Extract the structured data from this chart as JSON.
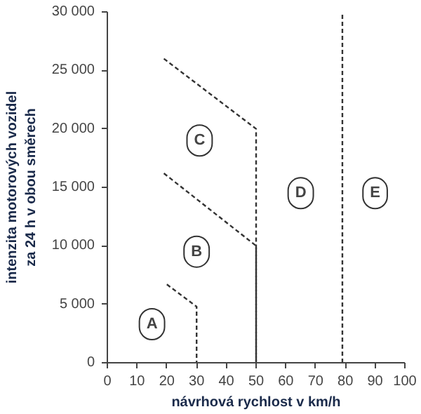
{
  "chart_data": {
    "type": "line",
    "xlabel": "návrhová rychlost v km/h",
    "ylabel": "intenzita motorových vozidel\nza 24 h v obou směrech",
    "line_style": "dashed",
    "marker": "none",
    "grid": false,
    "xlim": [
      0,
      100
    ],
    "ylim": [
      0,
      30000
    ],
    "xticks": [
      0,
      10,
      20,
      30,
      40,
      50,
      60,
      70,
      80,
      90,
      100
    ],
    "yticks": [
      0,
      {
        "value": 5000,
        "label": "5 000"
      },
      {
        "value": 10000,
        "label": "10 000"
      },
      {
        "value": 15000,
        "label": "15 000"
      },
      {
        "value": 20000,
        "label": "20 000"
      },
      {
        "value": 25000,
        "label": "25 000"
      },
      {
        "value": 30000,
        "label": "30 000"
      }
    ],
    "series": [
      {
        "color": "#333333",
        "x": [
          20,
          30,
          30
        ],
        "values": [
          6700,
          4800,
          0
        ]
      },
      {
        "color": "#333333",
        "x": [
          19,
          50,
          50
        ],
        "values": [
          16200,
          10000,
          0
        ]
      },
      {
        "color": "#333333",
        "x": [
          19,
          50,
          50
        ],
        "values": [
          26000,
          20000,
          0
        ]
      },
      {
        "color": "#333333",
        "x": [
          79,
          79
        ],
        "values": [
          0,
          30000
        ]
      }
    ],
    "annotations": [
      {
        "text": "A",
        "x": 15,
        "y": 3300
      },
      {
        "text": "B",
        "x": 30,
        "y": 9500
      },
      {
        "text": "C",
        "x": 31,
        "y": 19000
      },
      {
        "text": "D",
        "x": 65,
        "y": 14500
      },
      {
        "text": "E",
        "x": 90,
        "y": 14500
      }
    ]
  }
}
